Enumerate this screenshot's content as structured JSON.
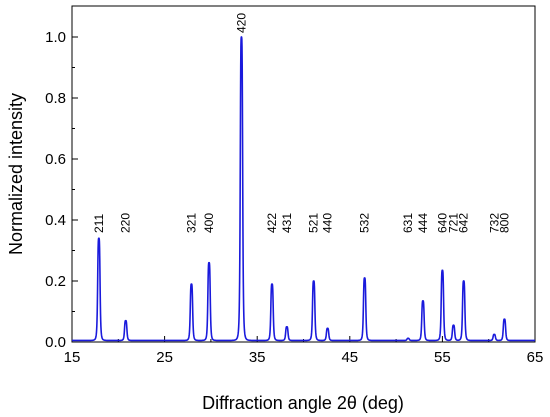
{
  "chart_data": {
    "type": "line",
    "xlabel": "Diffraction angle 2θ (deg)",
    "ylabel": "Normalized intensity",
    "xlim": [
      15,
      65
    ],
    "ylim": [
      0.0,
      1.0
    ],
    "x_ticks": [
      15,
      25,
      35,
      45,
      55,
      65
    ],
    "y_ticks": [
      0.0,
      0.2,
      0.4,
      0.6,
      0.8,
      1.0
    ],
    "x_ticks_text": [
      "15",
      "25",
      "35",
      "45",
      "55",
      "65"
    ],
    "y_ticks_text": [
      "0.0",
      "0.2",
      "0.4",
      "0.6",
      "0.8",
      "1.0"
    ],
    "line_color": "#1a1adc",
    "grid": false,
    "baseline": 0.005,
    "peaks": [
      {
        "x": 17.9,
        "y": 0.34,
        "label": "211"
      },
      {
        "x": 20.8,
        "y": 0.07,
        "label": "220"
      },
      {
        "x": 27.9,
        "y": 0.19,
        "label": "321"
      },
      {
        "x": 29.8,
        "y": 0.26,
        "label": "400"
      },
      {
        "x": 33.3,
        "y": 1.0,
        "label": "420"
      },
      {
        "x": 36.6,
        "y": 0.19,
        "label": "422"
      },
      {
        "x": 38.2,
        "y": 0.05,
        "label": "431"
      },
      {
        "x": 41.1,
        "y": 0.2,
        "label": "521"
      },
      {
        "x": 42.6,
        "y": 0.045,
        "label": "440"
      },
      {
        "x": 46.6,
        "y": 0.21,
        "label": "532"
      },
      {
        "x": 51.3,
        "y": 0.012,
        "label": "631"
      },
      {
        "x": 52.9,
        "y": 0.135,
        "label": "444"
      },
      {
        "x": 55.0,
        "y": 0.235,
        "label": "640"
      },
      {
        "x": 56.2,
        "y": 0.055,
        "label": "721"
      },
      {
        "x": 57.3,
        "y": 0.2,
        "label": "642"
      },
      {
        "x": 60.6,
        "y": 0.025,
        "label": "732"
      },
      {
        "x": 61.7,
        "y": 0.075,
        "label": "800"
      }
    ]
  }
}
